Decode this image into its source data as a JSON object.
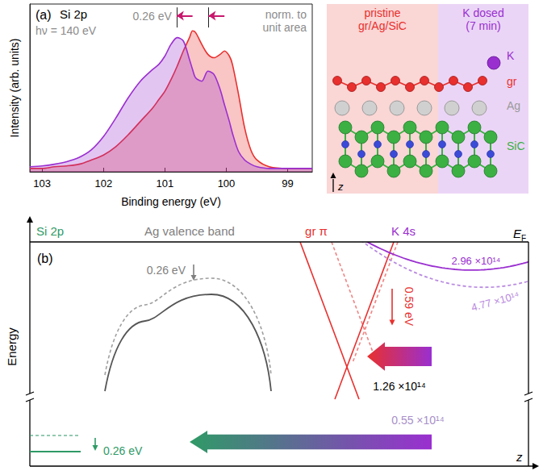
{
  "chart_data": {
    "type": "area",
    "panel": "(a)",
    "title": "Si 2p",
    "annotations": [
      "hν = 140 eV",
      "norm. to unit area"
    ],
    "x_label": "Binding energy (eV)",
    "y_label": "Intensity (arb. units)",
    "xlim": [
      103.2,
      98.6
    ],
    "xticks": [
      103,
      102,
      101,
      100,
      99
    ],
    "ylim": [
      0,
      1
    ],
    "tick_labels": "x",
    "x": [
      103.2,
      103.0,
      102.8,
      102.6,
      102.4,
      102.2,
      102.0,
      101.8,
      101.6,
      101.4,
      101.2,
      101.1,
      101.0,
      100.9,
      100.8,
      100.7,
      100.6,
      100.55,
      100.5,
      100.4,
      100.3,
      100.2,
      100.1,
      100.03,
      99.95,
      99.9,
      99.8,
      99.7,
      99.6,
      99.5,
      99.3,
      99.0,
      98.6
    ],
    "series": [
      {
        "color": "#e8302e",
        "values": [
          0.02,
          0.02,
          0.03,
          0.035,
          0.045,
          0.07,
          0.1,
          0.15,
          0.22,
          0.3,
          0.38,
          0.43,
          0.48,
          0.55,
          0.63,
          0.72,
          0.8,
          0.84,
          0.83,
          0.76,
          0.7,
          0.68,
          0.7,
          0.72,
          0.69,
          0.64,
          0.46,
          0.26,
          0.13,
          0.07,
          0.03,
          0.02,
          0.02
        ]
      },
      {
        "color": "#9a2fd0",
        "values": [
          0.03,
          0.035,
          0.045,
          0.06,
          0.085,
          0.13,
          0.21,
          0.32,
          0.44,
          0.54,
          0.61,
          0.64,
          0.69,
          0.76,
          0.8,
          0.78,
          0.67,
          0.61,
          0.56,
          0.54,
          0.6,
          0.58,
          0.49,
          0.4,
          0.3,
          0.23,
          0.12,
          0.07,
          0.045,
          0.03,
          0.02,
          0.02,
          0.02
        ]
      }
    ],
    "peak_shifts": {
      "label": "0.26 eV",
      "color": "#c8176e",
      "pairs": [
        {
          "from": 100.55,
          "to": 100.81
        },
        {
          "from": 100.03,
          "to": 100.29
        }
      ]
    }
  },
  "schematic": {
    "regions": [
      {
        "label": "pristine gr/Ag/SiC",
        "color": "#e8302e"
      },
      {
        "label": "K dosed (7 min)",
        "color": "#9a2fd0"
      }
    ],
    "layers": [
      {
        "label": "K",
        "color": "#9a2fd0"
      },
      {
        "label": "gr",
        "color": "#e8302e"
      },
      {
        "label": "Ag",
        "color": "#9a9a9a"
      },
      {
        "label": "SiC",
        "color": "#3cb043"
      }
    ],
    "axis_label": "z"
  },
  "energy_diagram": {
    "panel": "(b)",
    "y_label": "Energy",
    "x_label": "z",
    "fermi_level": {
      "text": "E",
      "subscript": "F"
    },
    "columns": [
      {
        "label": "Si 2p",
        "color": "#2f9a66",
        "shift": 0.26,
        "shift_label": "0.26 eV"
      },
      {
        "label": "Ag valence band",
        "color": "#7f7f7f",
        "shift": 0.26,
        "shift_label": "0.26 eV"
      },
      {
        "label": "gr π",
        "color": "#e8302e",
        "shift": 0.59,
        "shift_label": "0.59 eV"
      },
      {
        "label": "K 4s",
        "color": "#9a2fd0"
      }
    ],
    "k_densities": [
      {
        "value": 296000000000000.0,
        "label": "2.96 ×10¹⁴",
        "color": "#9a2fd0",
        "line_style": "solid"
      },
      {
        "value": 477000000000000.0,
        "label": "4.77 ×10¹⁴",
        "color": "#b98ae0",
        "line_style": "dashed"
      }
    ],
    "transfers": [
      {
        "value": 126000000000000.0,
        "label": "1.26 ×10¹⁴",
        "to": "gr π"
      },
      {
        "value": 55000000000000.0,
        "label": "0.55 ×10¹⁴",
        "to": "Si 2p"
      }
    ]
  }
}
